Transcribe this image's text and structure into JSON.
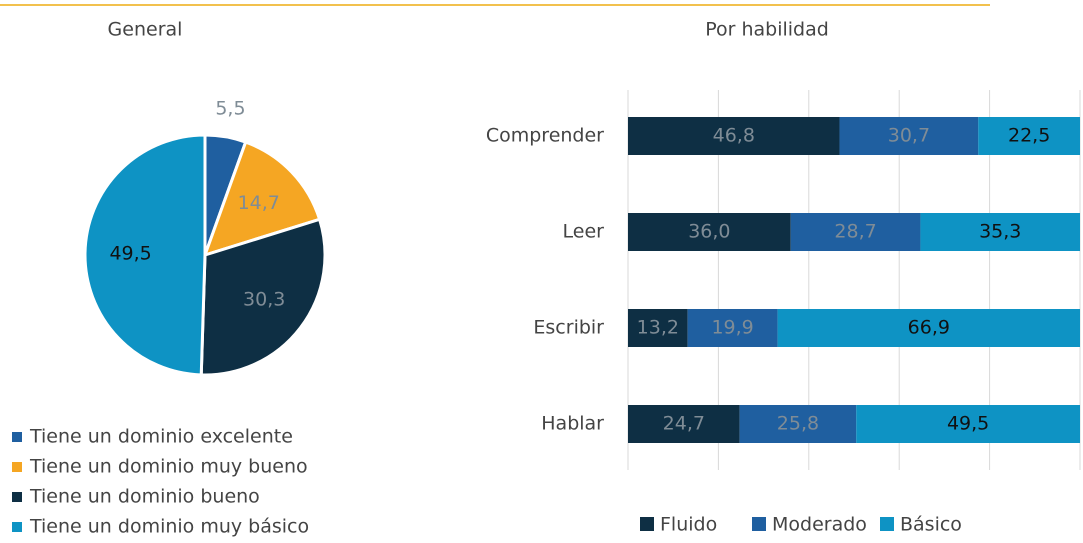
{
  "chart_data": [
    {
      "type": "pie",
      "title": "General",
      "categories": [
        "Tiene un dominio excelente",
        "Tiene un dominio muy bueno",
        "Tiene un dominio bueno",
        "Tiene un dominio muy básico"
      ],
      "values": [
        5.5,
        14.7,
        30.3,
        49.5
      ],
      "value_labels": [
        "5,5",
        "14,7",
        "30,3",
        "49,5"
      ],
      "colors": [
        "#1f5fa0",
        "#f5a623",
        "#0e2f44",
        "#0e93c4"
      ],
      "label_colors": [
        "#7f8c96",
        "#7f8c96",
        "#7f8c96",
        "#111111"
      ]
    },
    {
      "type": "stacked_barh",
      "title": "Por habilidad",
      "categories": [
        "Comprender",
        "Leer",
        "Escribir",
        "Hablar"
      ],
      "series": [
        {
          "name": "Fluido",
          "color": "#0e2f44",
          "label_color": "#7f8c96",
          "values": [
            46.8,
            36.0,
            13.2,
            24.7
          ],
          "value_labels": [
            "46,8",
            "36,0",
            "13,2",
            "24,7"
          ]
        },
        {
          "name": "Moderado",
          "color": "#1f5fa0",
          "label_color": "#7f8c96",
          "values": [
            30.7,
            28.7,
            19.9,
            25.8
          ],
          "value_labels": [
            "30,7",
            "28,7",
            "19,9",
            "25,8"
          ]
        },
        {
          "name": "Básico",
          "color": "#0e93c4",
          "label_color": "#111111",
          "values": [
            22.5,
            35.3,
            66.9,
            49.5
          ],
          "value_labels": [
            "22,5",
            "35,3",
            "66,9",
            "49,5"
          ]
        }
      ],
      "xlim": [
        0,
        100
      ],
      "xticks": [
        0,
        20,
        40,
        60,
        80,
        100
      ],
      "grid": true
    }
  ]
}
